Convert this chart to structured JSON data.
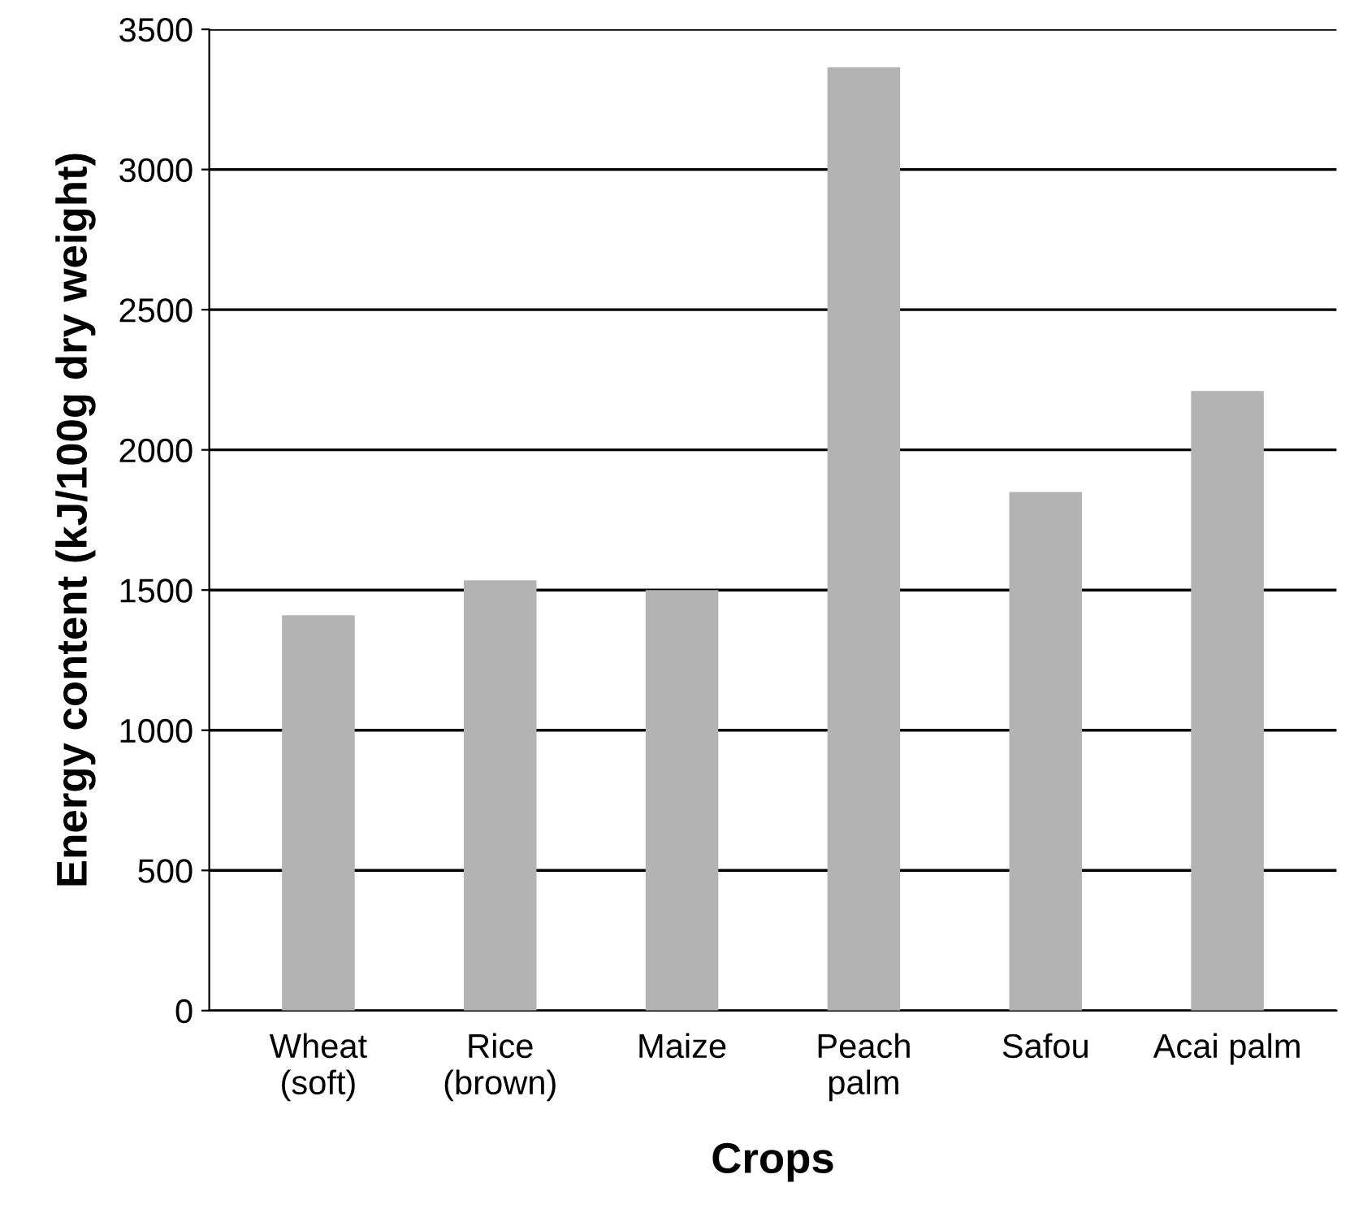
{
  "chart_data": {
    "type": "bar",
    "xlabel": "Crops",
    "ylabel": "Energy content (kJ/100g dry weight)",
    "categories": [
      "Wheat\n(soft)",
      "Rice\n(brown)",
      "Maize",
      "Peach\npalm",
      "Safou",
      "Acai palm"
    ],
    "values": [
      1410,
      1535,
      1500,
      3365,
      1850,
      2210
    ],
    "color": "#b3b3b3",
    "ylim": [
      0,
      3500
    ],
    "yticks": [
      0,
      500,
      1000,
      1500,
      2000,
      2500,
      3000,
      3500
    ],
    "grid": "y"
  }
}
